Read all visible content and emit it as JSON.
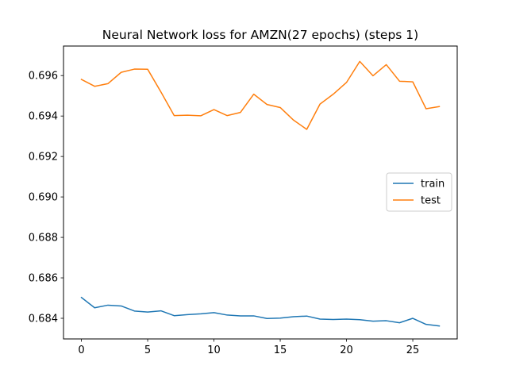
{
  "chart_data": {
    "type": "line",
    "title": "Neural Network loss for AMZN(27 epochs) (steps 1)",
    "xlabel": "",
    "ylabel": "",
    "xlim": [
      -1.35,
      28.35
    ],
    "ylim": [
      0.68298,
      0.69746
    ],
    "x_ticks": [
      0,
      5,
      10,
      15,
      20,
      25
    ],
    "y_ticks": [
      0.684,
      0.686,
      0.688,
      0.69,
      0.692,
      0.694,
      0.696
    ],
    "y_tick_labels": [
      "0.684",
      "0.686",
      "0.688",
      "0.690",
      "0.692",
      "0.694",
      "0.696"
    ],
    "x": [
      0,
      1,
      2,
      3,
      4,
      5,
      6,
      7,
      8,
      9,
      10,
      11,
      12,
      13,
      14,
      15,
      16,
      17,
      18,
      19,
      20,
      21,
      22,
      23,
      24,
      25,
      26,
      27
    ],
    "series": [
      {
        "name": "train",
        "color": "#1f77b4",
        "values": [
          0.68503,
          0.68452,
          0.68465,
          0.68461,
          0.68436,
          0.68431,
          0.68437,
          0.68413,
          0.68418,
          0.68422,
          0.68428,
          0.68416,
          0.68412,
          0.68412,
          0.68399,
          0.68401,
          0.68408,
          0.68411,
          0.68396,
          0.68394,
          0.68396,
          0.68393,
          0.68386,
          0.68388,
          0.68378,
          0.684,
          0.6837,
          0.68362
        ]
      },
      {
        "name": "test",
        "color": "#ff7f0e",
        "values": [
          0.69581,
          0.69547,
          0.6956,
          0.69616,
          0.69632,
          0.69631,
          0.69519,
          0.69402,
          0.69404,
          0.69401,
          0.69432,
          0.69402,
          0.69418,
          0.69508,
          0.69457,
          0.69442,
          0.6938,
          0.69334,
          0.69459,
          0.69508,
          0.69566,
          0.6967,
          0.69599,
          0.69654,
          0.69572,
          0.69569,
          0.69436,
          0.69447
        ]
      }
    ],
    "grid": false,
    "legend_position": "center-right"
  }
}
